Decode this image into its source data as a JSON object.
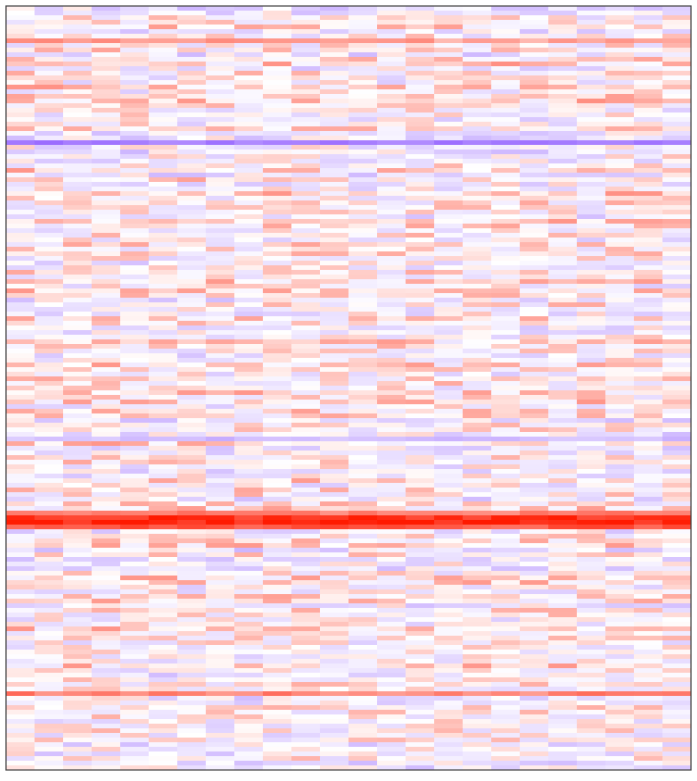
{
  "chart_data": {
    "type": "heatmap",
    "title": "",
    "xlabel": "",
    "ylabel": "",
    "n_columns": 24,
    "n_rows": 165,
    "value_range": [
      -1,
      1
    ],
    "colormap": {
      "negative": "#9b6cff",
      "neutral": "#ffffff",
      "positive": "#ff1a00"
    },
    "frame_color": "#444444",
    "legend": "none",
    "grid": false,
    "notable_rows": [
      {
        "row": 7,
        "value": 0.42
      },
      {
        "row": 29,
        "value": -0.9
      },
      {
        "row": 93,
        "value": -0.45
      },
      {
        "row": 109,
        "value": 0.55
      },
      {
        "row": 110,
        "value": 0.9
      },
      {
        "row": 111,
        "value": 0.95
      },
      {
        "row": 112,
        "value": 0.72
      },
      {
        "row": 148,
        "value": 0.55
      }
    ],
    "noise_seed": 12345,
    "noise_amplitude": 0.32,
    "row_bias_amplitude": 0.18
  }
}
